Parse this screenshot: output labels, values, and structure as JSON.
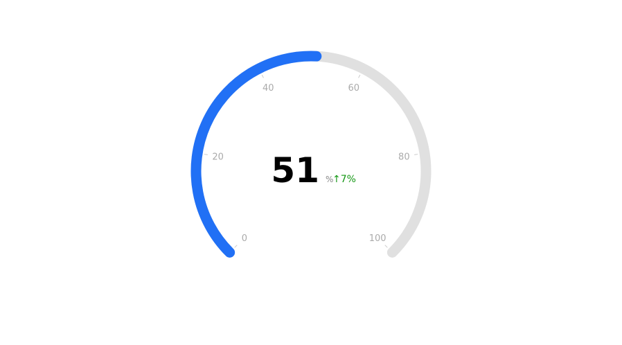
{
  "chart_data": {
    "type": "gauge",
    "min": 0,
    "max": 100,
    "value": 51,
    "value_label": "51",
    "unit": "%",
    "delta_label": "↑7%",
    "ticks": [
      0,
      20,
      40,
      60,
      80,
      100
    ],
    "tick_labels": [
      "0",
      "20",
      "40",
      "60",
      "80",
      "100"
    ],
    "colors": {
      "progress": "#2170F5",
      "track": "#E0E0E0",
      "tick_label": "#AAAAAA",
      "tick_mark": "#CCCCCC",
      "value": "#000000",
      "unit": "#888888",
      "delta": "#139713"
    }
  }
}
